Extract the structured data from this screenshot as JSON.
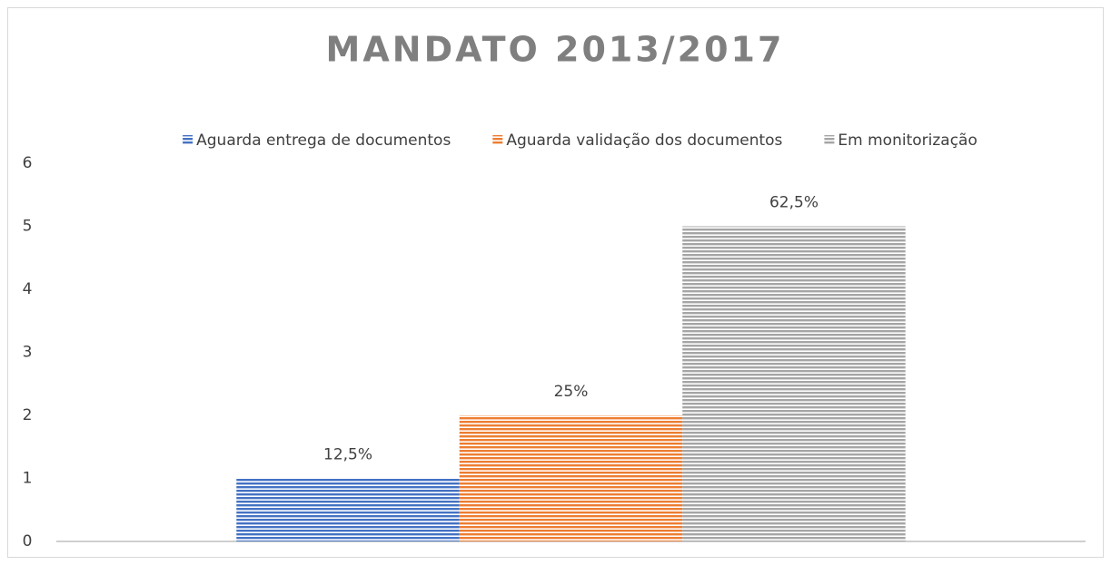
{
  "chart_data": {
    "type": "bar",
    "title": "MANDATO 2013/2017",
    "categories": [
      null
    ],
    "series": [
      {
        "name": "Aguarda entrega de documentos",
        "color": "#4472c4",
        "values": [
          1
        ],
        "value_labels": [
          "12,5%"
        ]
      },
      {
        "name": "Aguarda validação dos documentos",
        "color": "#ed7d31",
        "values": [
          2
        ],
        "value_labels": [
          "25%"
        ]
      },
      {
        "name": "Em monitorização",
        "color": "#a5a5a5",
        "values": [
          5
        ],
        "value_labels": [
          "62,5%"
        ]
      }
    ],
    "ylim": [
      0,
      6
    ],
    "yticks": [
      0,
      1,
      2,
      3,
      4,
      5,
      6
    ],
    "grid": false,
    "legend": "top"
  }
}
